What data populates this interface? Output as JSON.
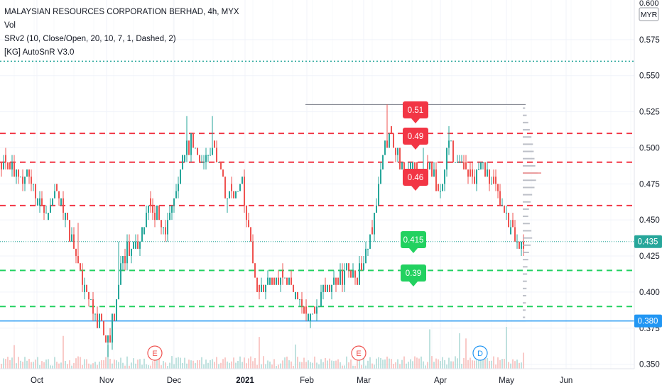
{
  "legend": {
    "title": "MALAYSIAN RESOURCES CORPORATION BERHAD, 4h, MYX",
    "vol": "Vol",
    "srv2": "SRv2 (10, Close/Open, 20, 10, 7, 1, Dashed, 2)",
    "autosnr": "[KG] AutoSnR V3.0"
  },
  "colors": {
    "up": "#26a69a",
    "down": "#ef5350",
    "resistance": "#f23645",
    "support": "#22d160",
    "current_price": "#2962ff",
    "support_line": "#2196f3",
    "grid": "#f0f3fa"
  },
  "chart_data": {
    "type": "candlestick",
    "symbol": "MALAYSIAN RESOURCES CORPORATION BERHAD",
    "timeframe": "4h",
    "exchange": "MYX",
    "currency": "MYR",
    "ylim": [
      0.335,
      0.6
    ],
    "y_ticks": [
      "0.350",
      "0.375",
      "0.400",
      "0.425",
      "0.450",
      "0.475",
      "0.500",
      "0.525",
      "0.550",
      "0.575"
    ],
    "top_tick_partial": "0.600",
    "x_ticks": [
      "Oct",
      "Nov",
      "Dec",
      "2021",
      "Feb",
      "Mar",
      "Apr",
      "May",
      "Jun"
    ],
    "current_price": "0.435",
    "support_price_label": "0.380",
    "resistance_levels": [
      0.51,
      0.49,
      0.46
    ],
    "support_levels": [
      0.415,
      0.39
    ],
    "resistance_labels": [
      "0.51",
      "0.49",
      "0.46"
    ],
    "support_labels": [
      "0.415",
      "0.39"
    ],
    "horizontal_lines": [
      {
        "price": 0.53,
        "style": "solid",
        "color": "#787b86"
      },
      {
        "price": 0.38,
        "style": "solid",
        "color": "#787b86"
      },
      {
        "price": 0.56,
        "style": "dotted",
        "color": "#26a69a"
      }
    ],
    "events": [
      {
        "label": "E",
        "month": "Nov"
      },
      {
        "label": "E",
        "month": "Mar"
      },
      {
        "label": "D",
        "month": "Apr"
      }
    ],
    "path": [
      [
        0,
        0.49
      ],
      [
        10,
        0.488
      ],
      [
        20,
        0.485
      ],
      [
        30,
        0.478
      ],
      [
        40,
        0.48
      ],
      [
        50,
        0.468
      ],
      [
        60,
        0.455
      ],
      [
        70,
        0.462
      ],
      [
        80,
        0.465
      ],
      [
        90,
        0.455
      ],
      [
        100,
        0.435
      ],
      [
        110,
        0.415
      ],
      [
        120,
        0.4
      ],
      [
        130,
        0.385
      ],
      [
        140,
        0.378
      ],
      [
        150,
        0.362
      ],
      [
        160,
        0.385
      ],
      [
        170,
        0.42
      ],
      [
        180,
        0.43
      ],
      [
        190,
        0.432
      ],
      [
        200,
        0.442
      ],
      [
        210,
        0.456
      ],
      [
        220,
        0.455
      ],
      [
        230,
        0.44
      ],
      [
        240,
        0.455
      ],
      [
        250,
        0.475
      ],
      [
        260,
        0.5
      ],
      [
        270,
        0.505
      ],
      [
        280,
        0.49
      ],
      [
        290,
        0.495
      ],
      [
        300,
        0.5
      ],
      [
        310,
        0.485
      ],
      [
        320,
        0.462
      ],
      [
        330,
        0.472
      ],
      [
        340,
        0.475
      ],
      [
        350,
        0.44
      ],
      [
        360,
        0.405
      ],
      [
        370,
        0.4
      ],
      [
        380,
        0.41
      ],
      [
        390,
        0.412
      ],
      [
        400,
        0.408
      ],
      [
        410,
        0.4
      ],
      [
        420,
        0.395
      ],
      [
        430,
        0.385
      ],
      [
        440,
        0.39
      ],
      [
        450,
        0.4
      ],
      [
        460,
        0.402
      ],
      [
        470,
        0.408
      ],
      [
        480,
        0.413
      ],
      [
        490,
        0.412
      ],
      [
        500,
        0.41
      ],
      [
        510,
        0.418
      ],
      [
        520,
        0.435
      ],
      [
        530,
        0.465
      ],
      [
        540,
        0.505
      ],
      [
        550,
        0.51
      ],
      [
        560,
        0.495
      ],
      [
        570,
        0.487
      ],
      [
        580,
        0.483
      ],
      [
        590,
        0.478
      ],
      [
        600,
        0.487
      ],
      [
        610,
        0.482
      ],
      [
        620,
        0.468
      ],
      [
        630,
        0.505
      ],
      [
        640,
        0.492
      ],
      [
        650,
        0.482
      ],
      [
        660,
        0.476
      ],
      [
        670,
        0.485
      ],
      [
        680,
        0.484
      ],
      [
        690,
        0.474
      ],
      [
        700,
        0.47
      ],
      [
        710,
        0.458
      ],
      [
        720,
        0.44
      ],
      [
        730,
        0.437
      ],
      [
        738,
        0.435
      ]
    ],
    "spikes": [
      [
        108,
        0.448
      ],
      [
        150,
        0.355
      ],
      [
        165,
        0.435
      ],
      [
        262,
        0.522
      ],
      [
        298,
        0.522
      ],
      [
        318,
        0.455
      ],
      [
        350,
        0.455
      ],
      [
        545,
        0.53
      ],
      [
        596,
        0.5
      ],
      [
        630,
        0.515
      ],
      [
        672,
        0.49
      ]
    ],
    "volume_profile_bins": [
      0.5275,
      0.5225,
      0.5175,
      0.5125,
      0.5075,
      0.5025,
      0.4975,
      0.4925,
      0.4875,
      0.4825,
      0.4775,
      0.4725,
      0.4675,
      0.4625,
      0.4575,
      0.4525,
      0.4475,
      0.4425,
      0.4375,
      0.4325,
      0.4275,
      0.4225,
      0.4175,
      0.4125,
      0.4075,
      0.4025,
      0.3975,
      0.3925,
      0.3875,
      0.3825
    ],
    "volume_profile_values": [
      0.15,
      0.25,
      0.35,
      0.45,
      0.55,
      0.65,
      0.7,
      0.75,
      0.8,
      0.95,
      0.85,
      0.75,
      0.6,
      0.5,
      0.4,
      0.35,
      0.45,
      0.55,
      0.6,
      0.5,
      0.4,
      0.35,
      0.3,
      0.28,
      0.26,
      0.24,
      0.22,
      0.2,
      0.18,
      0.15
    ]
  }
}
